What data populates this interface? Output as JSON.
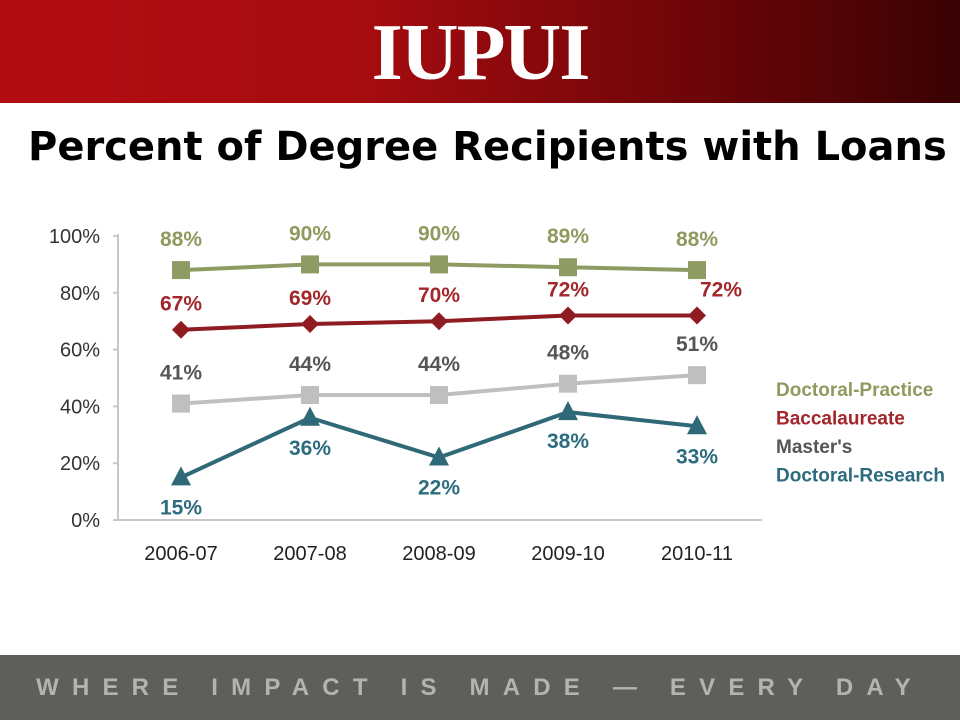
{
  "header": {
    "logo_text": "IUPUI"
  },
  "slide": {
    "title": "Percent of Degree Recipients with Loans"
  },
  "footer": {
    "tagline": "WHERE IMPACT IS MADE — EVERY DAY"
  },
  "colors": {
    "banner_red": "#a50c10",
    "footer_gray": "#5e5e5c",
    "doctoral_practice": "#8e9c63",
    "baccalaureate": "#8e1c20",
    "masters": "#bfbfbf",
    "doctoral_research": "#2f6877"
  },
  "chart_data": {
    "type": "line",
    "categories": [
      "2006-07",
      "2007-08",
      "2008-09",
      "2009-10",
      "2010-11"
    ],
    "y_ticks": [
      "0%",
      "20%",
      "40%",
      "60%",
      "80%",
      "100%"
    ],
    "ylim": [
      0,
      100
    ],
    "grid": false,
    "legend_position": "right",
    "series": [
      {
        "name": "Doctoral-Practice",
        "values": [
          88,
          90,
          90,
          89,
          88
        ],
        "labels": [
          "88%",
          "90%",
          "90%",
          "89%",
          "88%"
        ],
        "marker": "square",
        "color": "#8e9c63",
        "label_color": "#8e9a5e"
      },
      {
        "name": "Baccalaureate",
        "values": [
          67,
          69,
          70,
          72,
          72
        ],
        "labels": [
          "67%",
          "69%",
          "70%",
          "72%",
          "72%"
        ],
        "marker": "diamond",
        "color": "#8e1c20",
        "label_color": "#a3262a"
      },
      {
        "name": "Master's",
        "values": [
          41,
          44,
          44,
          48,
          51
        ],
        "labels": [
          "41%",
          "44%",
          "44%",
          "48%",
          "51%"
        ],
        "marker": "square",
        "color": "#bfbfbf",
        "label_color": "#555555"
      },
      {
        "name": "Doctoral-Research",
        "values": [
          15,
          36,
          22,
          38,
          33
        ],
        "labels": [
          "15%",
          "36%",
          "22%",
          "38%",
          "33%"
        ],
        "marker": "triangle",
        "color": "#2f6877",
        "label_color": "#2d6b7e"
      }
    ]
  }
}
